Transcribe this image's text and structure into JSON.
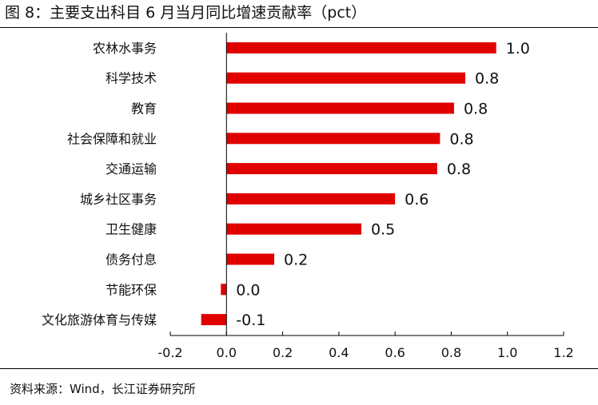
{
  "figure": {
    "title": "图 8：主要支出科目 6 月当月同比增速贡献率（pct）",
    "source": "资料来源：Wind，长江证券研究所"
  },
  "chart_data": {
    "type": "bar",
    "orientation": "horizontal",
    "title": "主要支出科目 6 月当月同比增速贡献率（pct）",
    "xlabel": "",
    "ylabel": "",
    "xlim": [
      -0.2,
      1.2
    ],
    "xticks": [
      "-0.2",
      "0.0",
      "0.2",
      "0.4",
      "0.6",
      "0.8",
      "1.0",
      "1.2"
    ],
    "categories": [
      "农林水事务",
      "科学技术",
      "教育",
      "社会保障和就业",
      "交通运输",
      "城乡社区事务",
      "卫生健康",
      "债务付息",
      "节能环保",
      "文化旅游体育与传媒"
    ],
    "values": [
      0.96,
      0.85,
      0.81,
      0.76,
      0.75,
      0.6,
      0.48,
      0.17,
      -0.02,
      -0.09
    ],
    "labels": [
      "1.0",
      "0.8",
      "0.8",
      "0.8",
      "0.8",
      "0.6",
      "0.5",
      "0.2",
      "0.0",
      "-0.1"
    ],
    "color": "#e00000",
    "grid": false,
    "legend": "none"
  }
}
